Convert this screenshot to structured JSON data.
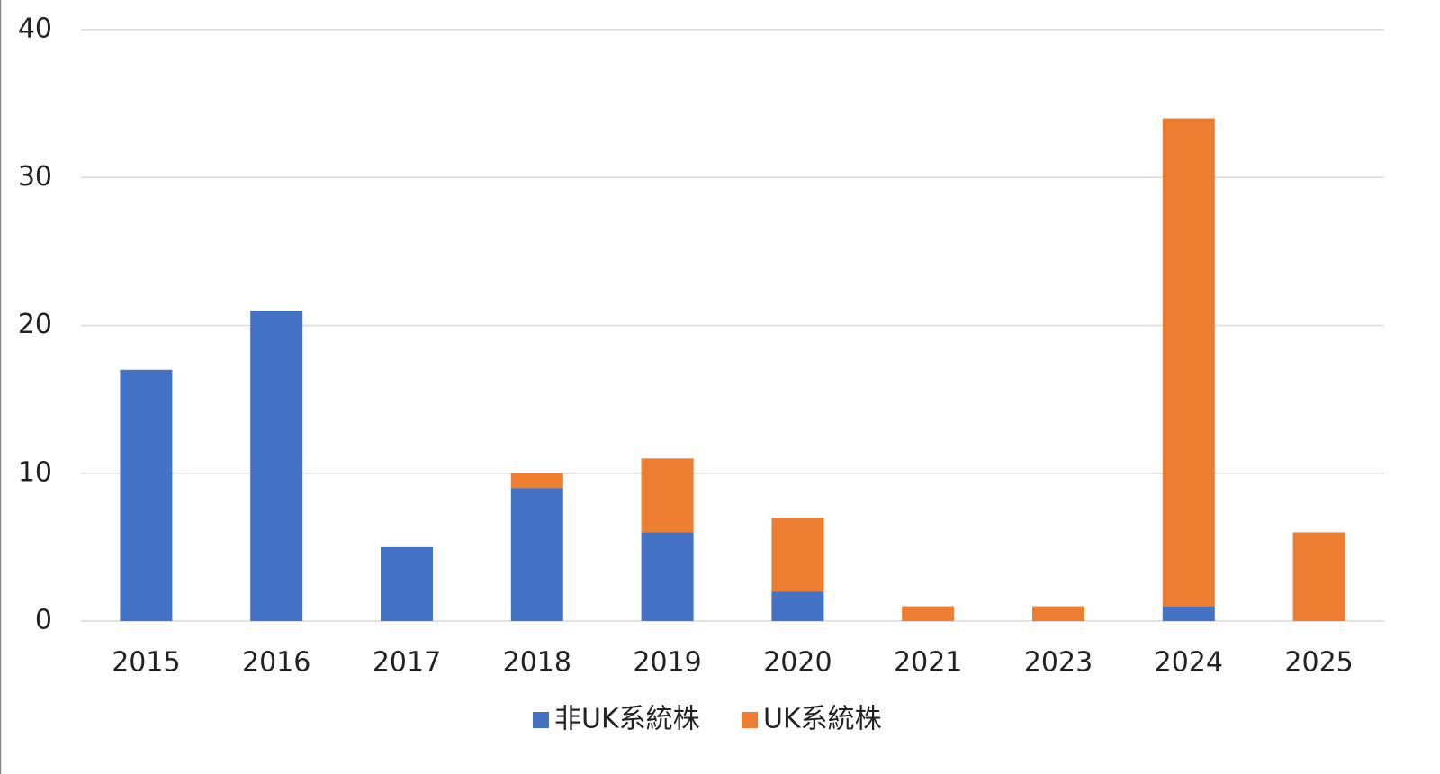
{
  "chart_data": {
    "type": "stacked_bar",
    "categories": [
      "2015",
      "2016",
      "2017",
      "2018",
      "2019",
      "2020",
      "2021",
      "2023",
      "2024",
      "2025"
    ],
    "series": [
      {
        "name": "非UK系統株",
        "color": "#4472c4",
        "values": [
          17,
          21,
          5,
          9,
          6,
          2,
          0,
          0,
          1,
          0
        ]
      },
      {
        "name": "UK系統株",
        "color": "#ed7d31",
        "values": [
          0,
          0,
          0,
          1,
          5,
          5,
          1,
          1,
          33,
          6
        ]
      }
    ],
    "ylim": [
      0,
      40
    ],
    "yticks": [
      0,
      10,
      20,
      30,
      40
    ],
    "grid": true,
    "legend": "bottom"
  }
}
